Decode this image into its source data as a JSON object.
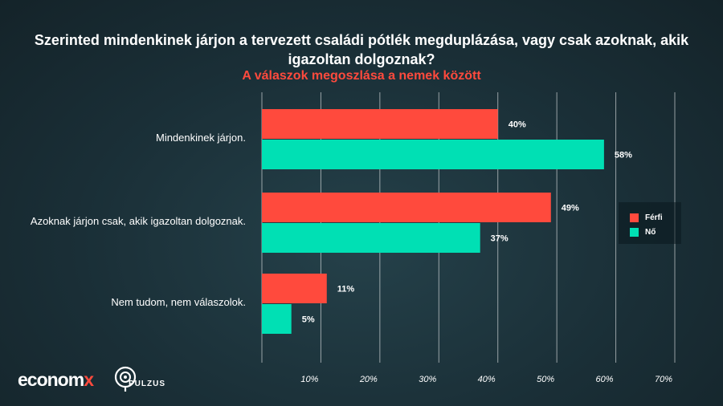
{
  "colors": {
    "series_men": "#ff4a3d",
    "series_women": "#00e0b4",
    "subtitle": "#ff4a3d",
    "grid": "#ffffff"
  },
  "chart_data": {
    "type": "bar",
    "orientation": "horizontal",
    "title": "Szerinted mindenkinek járjon a tervezett családi pótlék megduplázása, vagy csak azoknak, akik igazoltan dolgoznak?",
    "subtitle": "A válaszok megoszlása a nemek között",
    "categories": [
      "Mindenkinek járjon.",
      "Azoknak járjon csak, akik igazoltan dolgoznak.",
      "Nem tudom, nem válaszolok."
    ],
    "series": [
      {
        "name": "Férfi",
        "values": [
          40,
          49,
          11
        ],
        "labels": [
          "40%",
          "49%",
          "11%"
        ]
      },
      {
        "name": "Nő",
        "values": [
          58,
          37,
          5
        ],
        "labels": [
          "58%",
          "37%",
          "5%"
        ]
      }
    ],
    "xlim": [
      0,
      70
    ],
    "ticks": [
      10,
      20,
      30,
      40,
      50,
      60,
      70
    ],
    "tick_labels": [
      "10%",
      "20%",
      "30%",
      "40%",
      "50%",
      "60%",
      "70%"
    ],
    "grid": true,
    "legend": "right"
  },
  "brand": {
    "logo_main": "econom",
    "logo_accent": "x",
    "logo_secondary": "PULZUS",
    "logo_secondary_icon": "pulse-circle-icon"
  }
}
